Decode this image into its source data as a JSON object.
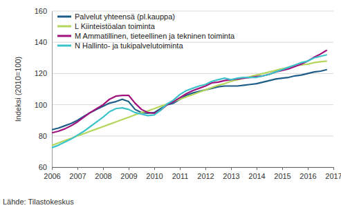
{
  "chart_data": {
    "type": "line",
    "y_label": "Indeksi (2010=100)",
    "source": "Lähde: Tilastokeskus",
    "x": [
      2006,
      2006.25,
      2006.5,
      2006.75,
      2007,
      2007.25,
      2007.5,
      2007.75,
      2008,
      2008.25,
      2008.5,
      2008.75,
      2009,
      2009.25,
      2009.5,
      2009.75,
      2010,
      2010.25,
      2010.5,
      2010.75,
      2011,
      2011.25,
      2011.5,
      2011.75,
      2012,
      2012.25,
      2012.5,
      2012.75,
      2013,
      2013.25,
      2013.5,
      2013.75,
      2014,
      2014.25,
      2014.5,
      2014.75,
      2015,
      2015.25,
      2015.5,
      2015.75,
      2016,
      2016.25,
      2016.5,
      2016.75
    ],
    "series": [
      {
        "name": "Palvelut yhteensä (pl.kauppa)",
        "color": "#1d5d87",
        "values": [
          84,
          85,
          86.5,
          88,
          90,
          92.5,
          95,
          97,
          99,
          101,
          102,
          103.5,
          102,
          97,
          95,
          94.5,
          95,
          97.5,
          100,
          101,
          103.5,
          106,
          107.5,
          108.5,
          109.5,
          110.5,
          111.5,
          112,
          112,
          112,
          112.5,
          113,
          113.5,
          114.5,
          115.5,
          116.5,
          117,
          117.5,
          118.5,
          119,
          120,
          121,
          121.5,
          122.5
        ]
      },
      {
        "name": "L Kiinteistöalan toiminta",
        "color": "#b5d65c",
        "values": [
          74,
          75.5,
          77,
          78.5,
          80,
          81.5,
          83,
          84.5,
          86,
          87.5,
          89,
          90.5,
          92,
          93.5,
          95,
          96,
          97.5,
          99,
          100.5,
          102,
          103.5,
          105,
          106.5,
          108,
          109.5,
          111,
          112.5,
          113.5,
          115,
          116,
          117,
          118,
          119,
          120,
          121,
          122,
          123,
          124,
          125,
          125.5,
          126,
          127,
          127.5,
          128
        ]
      },
      {
        "name": "M Ammatillinen, tieteellinen ja tekninen toiminta",
        "color": "#a0127e",
        "values": [
          82,
          83,
          84.5,
          86.5,
          89,
          92,
          95,
          97.5,
          100,
          103.5,
          105.5,
          106,
          106,
          101,
          97,
          95,
          94.5,
          96.5,
          100,
          102,
          104.5,
          107,
          109,
          110.5,
          112,
          114,
          114.5,
          115.5,
          116,
          116.5,
          117,
          117.5,
          118,
          118.5,
          119.5,
          121,
          122,
          123,
          124.5,
          126,
          128,
          130.5,
          132.5,
          135
        ]
      },
      {
        "name": "N Hallinto- ja tukipalvelutoiminta",
        "color": "#3cc3c9",
        "values": [
          72.5,
          74,
          76,
          78,
          80.5,
          83,
          86,
          89,
          92,
          95.5,
          97.5,
          98,
          97,
          95,
          94,
          93,
          93.5,
          96.5,
          100.5,
          103,
          106.5,
          109,
          110.5,
          112,
          113,
          115,
          116,
          117,
          116,
          117,
          117.5,
          117.5,
          117.5,
          118.5,
          119.5,
          121,
          122.5,
          124,
          125.5,
          127,
          128,
          130,
          131,
          132
        ]
      }
    ],
    "xlim": [
      2006,
      2017
    ],
    "xticks": [
      2006,
      2007,
      2008,
      2009,
      2010,
      2011,
      2012,
      2013,
      2014,
      2015,
      2016,
      2017
    ],
    "ylim": [
      60,
      160
    ],
    "yticks": [
      60,
      80,
      100,
      120,
      140,
      160
    ],
    "grid": true,
    "legend": "upper left"
  }
}
